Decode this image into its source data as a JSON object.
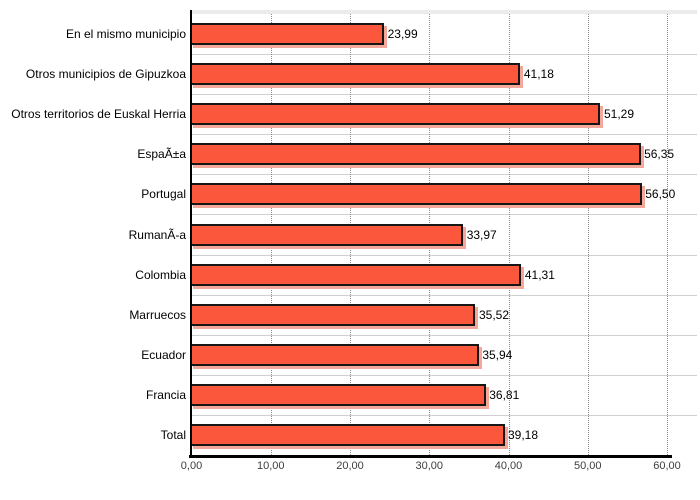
{
  "chart_data": {
    "type": "bar",
    "orientation": "horizontal",
    "title": "",
    "xlabel": "",
    "ylabel": "",
    "categories": [
      "En el mismo municipio",
      "Otros municipios de Gipuzkoa",
      "Otros territorios de Euskal Herria",
      "EspaÃ±a",
      "Portugal",
      "RumanÃ-a",
      "Colombia",
      "Marruecos",
      "Ecuador",
      "Francia",
      "Total"
    ],
    "values": [
      23.99,
      41.18,
      51.29,
      56.35,
      56.5,
      33.97,
      41.31,
      35.52,
      35.94,
      36.81,
      39.18
    ],
    "value_labels": [
      "23,99",
      "41,18",
      "51,29",
      "56,35",
      "56,50",
      "33,97",
      "41,31",
      "35,52",
      "35,94",
      "36,81",
      "39,18"
    ],
    "xlim": [
      0,
      60
    ],
    "x_tick_labels": [
      "0,00",
      "10,00",
      "20,00",
      "30,00",
      "40,00",
      "50,00",
      "60,00"
    ],
    "grid": "vertical-dotted",
    "legend": "none",
    "colors": {
      "bar_fill": "#FA573C",
      "bar_border": "#161616",
      "bar_shadow": "#F4A89B",
      "gridline": "#8A8A8A",
      "row_separator": "#CFCFCF",
      "axis": "#000000",
      "tick_text": "#3D3D3D",
      "label_text": "#000000"
    }
  }
}
